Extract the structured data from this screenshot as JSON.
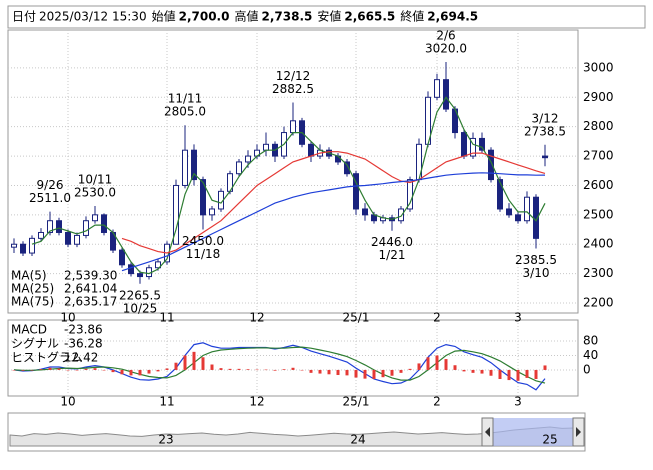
{
  "header": {
    "fields": [
      {
        "label": "日付",
        "value": "2025/03/12 15:30",
        "color": "#000000"
      },
      {
        "label": "始値",
        "value": "2,700.0",
        "color": "#000000"
      },
      {
        "label": "高値",
        "value": "2,738.5",
        "color": "#e00000"
      },
      {
        "label": "安値",
        "value": "2,665.5",
        "color": "#008000"
      },
      {
        "label": "終値",
        "value": "2,694.5",
        "color": "#000000"
      }
    ]
  },
  "chart_data": [
    {
      "type": "candlestick",
      "categories": [
        null,
        null,
        null,
        null,
        null,
        null,
        "10",
        null,
        null,
        null,
        null,
        null,
        null,
        null,
        null,
        null,
        null,
        "11",
        null,
        null,
        null,
        null,
        null,
        null,
        null,
        null,
        null,
        "12",
        null,
        null,
        null,
        null,
        null,
        null,
        null,
        null,
        null,
        null,
        "25/1",
        null,
        null,
        null,
        null,
        null,
        null,
        null,
        null,
        "2",
        null,
        null,
        null,
        null,
        null,
        null,
        null,
        null,
        "3",
        null,
        null,
        null
      ],
      "open": [
        2390,
        2400,
        2370,
        2420,
        2440,
        2480,
        2440,
        2400,
        2430,
        2480,
        2500,
        2440,
        2380,
        2330,
        2300,
        2290,
        2320,
        2340,
        2400,
        2600,
        2720,
        2620,
        2500,
        2520,
        2580,
        2640,
        2680,
        2700,
        2720,
        2740,
        2700,
        2780,
        2820,
        2740,
        2700,
        2720,
        2700,
        2680,
        2640,
        2520,
        2500,
        2480,
        2490,
        2480,
        2520,
        2620,
        2740,
        2900,
        2960,
        2860,
        2780,
        2700,
        2760,
        2720,
        2620,
        2520,
        2500,
        2480,
        2560,
        2700
      ],
      "high": [
        2420,
        2410,
        2430,
        2455,
        2511,
        2490,
        2450,
        2440,
        2495,
        2530,
        2505,
        2450,
        2390,
        2340,
        2310,
        2330,
        2350,
        2410,
        2620,
        2805,
        2740,
        2630,
        2530,
        2590,
        2650,
        2690,
        2720,
        2740,
        2780,
        2750,
        2800,
        2882.5,
        2830,
        2750,
        2740,
        2730,
        2710,
        2690,
        2650,
        2540,
        2510,
        2500,
        2500,
        2530,
        2630,
        2760,
        2920,
        2980,
        3020,
        2870,
        2790,
        2780,
        2780,
        2730,
        2630,
        2540,
        2510,
        2580,
        2570,
        2738.5
      ],
      "low": [
        2370,
        2360,
        2360,
        2410,
        2430,
        2430,
        2390,
        2390,
        2420,
        2470,
        2430,
        2370,
        2320,
        2290,
        2265.5,
        2280,
        2310,
        2330,
        2400,
        2590,
        2600,
        2450,
        2480,
        2510,
        2570,
        2630,
        2660,
        2690,
        2700,
        2680,
        2690,
        2770,
        2730,
        2680,
        2690,
        2690,
        2670,
        2630,
        2500,
        2480,
        2470,
        2470,
        2446,
        2470,
        2510,
        2610,
        2730,
        2890,
        2850,
        2760,
        2690,
        2690,
        2710,
        2610,
        2510,
        2490,
        2470,
        2470,
        2385.5,
        2665.5
      ],
      "close": [
        2400,
        2370,
        2420,
        2440,
        2480,
        2440,
        2400,
        2430,
        2480,
        2500,
        2440,
        2380,
        2330,
        2300,
        2290,
        2320,
        2340,
        2400,
        2600,
        2720,
        2620,
        2500,
        2520,
        2580,
        2640,
        2680,
        2700,
        2720,
        2740,
        2700,
        2780,
        2820,
        2740,
        2700,
        2720,
        2700,
        2680,
        2640,
        2520,
        2500,
        2480,
        2490,
        2480,
        2520,
        2620,
        2740,
        2900,
        2960,
        2860,
        2780,
        2700,
        2760,
        2720,
        2620,
        2520,
        2500,
        2480,
        2560,
        2420,
        2694.5
      ],
      "high_labels": [
        null,
        null,
        null,
        null,
        "2511.0",
        null,
        null,
        null,
        null,
        "2530.0",
        null,
        null,
        null,
        null,
        null,
        null,
        null,
        null,
        null,
        "2805.0",
        null,
        null,
        null,
        null,
        null,
        null,
        null,
        null,
        null,
        null,
        null,
        "2882.5",
        null,
        null,
        null,
        null,
        null,
        null,
        null,
        null,
        null,
        null,
        null,
        null,
        null,
        null,
        null,
        null,
        "3020.0",
        null,
        null,
        null,
        null,
        null,
        null,
        null,
        null,
        null,
        null,
        "2738.5"
      ],
      "high_dates": [
        null,
        null,
        null,
        null,
        "9/26",
        null,
        null,
        null,
        null,
        "10/11",
        null,
        null,
        null,
        null,
        null,
        null,
        null,
        null,
        null,
        "11/11",
        null,
        null,
        null,
        null,
        null,
        null,
        null,
        null,
        null,
        null,
        null,
        "12/12",
        null,
        null,
        null,
        null,
        null,
        null,
        null,
        null,
        null,
        null,
        null,
        null,
        null,
        null,
        null,
        null,
        "2/6",
        null,
        null,
        null,
        null,
        null,
        null,
        null,
        null,
        null,
        null,
        "3/12"
      ],
      "low_labels": [
        null,
        null,
        null,
        null,
        null,
        null,
        null,
        null,
        null,
        null,
        null,
        null,
        null,
        null,
        "2265.5",
        null,
        null,
        null,
        null,
        null,
        null,
        "2450.0",
        null,
        null,
        null,
        null,
        null,
        null,
        null,
        null,
        null,
        null,
        null,
        null,
        null,
        null,
        null,
        null,
        null,
        null,
        null,
        null,
        "2446.0",
        null,
        null,
        null,
        null,
        null,
        null,
        null,
        null,
        null,
        null,
        null,
        null,
        null,
        null,
        null,
        "2385.5",
        null
      ],
      "low_dates": [
        null,
        null,
        null,
        null,
        null,
        null,
        null,
        null,
        null,
        null,
        null,
        null,
        null,
        null,
        "10/25",
        null,
        null,
        null,
        null,
        null,
        null,
        "11/18",
        null,
        null,
        null,
        null,
        null,
        null,
        null,
        null,
        null,
        null,
        null,
        null,
        null,
        null,
        null,
        null,
        null,
        null,
        null,
        null,
        "1/21",
        null,
        null,
        null,
        null,
        null,
        null,
        null,
        null,
        null,
        null,
        null,
        null,
        null,
        null,
        null,
        "3/10",
        null
      ],
      "up_color": "#ffffff",
      "down_color": "#1a237e",
      "series": [
        {
          "name": "MA(5)",
          "color": "#2e7d32",
          "last_label": "2,539.30",
          "values": [
            null,
            null,
            2400,
            2410,
            2445,
            2455,
            2445,
            2435,
            2445,
            2465,
            2465,
            2440,
            2390,
            2340,
            2305,
            2300,
            2315,
            2350,
            2450,
            2570,
            2640,
            2610,
            2550,
            2540,
            2580,
            2630,
            2670,
            2700,
            2720,
            2720,
            2740,
            2780,
            2780,
            2750,
            2720,
            2710,
            2700,
            2670,
            2610,
            2550,
            2500,
            2490,
            2485,
            2495,
            2540,
            2620,
            2740,
            2850,
            2900,
            2860,
            2790,
            2740,
            2730,
            2680,
            2610,
            2550,
            2510,
            2510,
            2480,
            2539.3
          ]
        },
        {
          "name": "MA(25)",
          "color": "#e53935",
          "last_label": "2,641.04",
          "values": [
            null,
            null,
            null,
            null,
            null,
            null,
            null,
            null,
            null,
            null,
            null,
            null,
            2420,
            2410,
            2395,
            2385,
            2375,
            2370,
            2380,
            2400,
            2420,
            2440,
            2460,
            2480,
            2510,
            2540,
            2570,
            2600,
            2620,
            2640,
            2660,
            2680,
            2690,
            2700,
            2710,
            2715,
            2715,
            2710,
            2700,
            2690,
            2670,
            2650,
            2630,
            2615,
            2610,
            2620,
            2640,
            2660,
            2680,
            2690,
            2700,
            2710,
            2710,
            2700,
            2690,
            2680,
            2670,
            2660,
            2650,
            2641.04
          ]
        },
        {
          "name": "MA(75)",
          "color": "#1e3fd8",
          "last_label": "2,635.17",
          "values": [
            null,
            null,
            null,
            null,
            null,
            null,
            null,
            null,
            null,
            null,
            null,
            null,
            2310,
            2320,
            2330,
            2340,
            2350,
            2360,
            2375,
            2390,
            2405,
            2420,
            2435,
            2450,
            2465,
            2480,
            2495,
            2510,
            2525,
            2540,
            2550,
            2560,
            2568,
            2575,
            2580,
            2585,
            2590,
            2595,
            2598,
            2600,
            2603,
            2606,
            2610,
            2613,
            2616,
            2620,
            2625,
            2630,
            2635,
            2638,
            2640,
            2642,
            2643,
            2642,
            2640,
            2638,
            2636,
            2636,
            2635,
            2635.17
          ]
        }
      ],
      "ylim": [
        2166,
        3129
      ],
      "yticks": [
        2200,
        2300,
        2400,
        2500,
        2600,
        2700,
        2800,
        2900,
        3000
      ],
      "grid": true
    },
    {
      "type": "macd",
      "series": [
        {
          "name": "MACD",
          "color": "#1e3fd8",
          "style": "line",
          "values": [
            0,
            -3,
            -2,
            2,
            8,
            8,
            4,
            3,
            8,
            12,
            8,
            0,
            -10,
            -20,
            -27,
            -28,
            -25,
            -18,
            5,
            40,
            70,
            75,
            65,
            60,
            60,
            62,
            62,
            62,
            62,
            58,
            62,
            68,
            62,
            52,
            45,
            38,
            30,
            22,
            5,
            -10,
            -25,
            -32,
            -38,
            -36,
            -25,
            0,
            35,
            60,
            70,
            65,
            50,
            42,
            35,
            20,
            0,
            -18,
            -35,
            -40,
            -55,
            -23.86
          ]
        },
        {
          "name": "シグナル",
          "color": "#2e7d32",
          "style": "line",
          "values": [
            0,
            -1,
            -1,
            0,
            2,
            4,
            5,
            4,
            5,
            7,
            8,
            6,
            2,
            -5,
            -12,
            -18,
            -21,
            -22,
            -15,
            0,
            20,
            40,
            50,
            55,
            57,
            59,
            60,
            61,
            61,
            60,
            60,
            62,
            63,
            60,
            55,
            50,
            44,
            37,
            26,
            14,
            0,
            -12,
            -22,
            -28,
            -28,
            -18,
            0,
            20,
            40,
            52,
            54,
            50,
            45,
            36,
            25,
            10,
            -5,
            -18,
            -30,
            -36.28
          ]
        },
        {
          "name": "ヒストグラム",
          "color": "#e53935",
          "style": "bar",
          "values": [
            0,
            -2,
            -1,
            2,
            6,
            4,
            -1,
            -1,
            3,
            5,
            0,
            -6,
            -12,
            -15,
            -15,
            -10,
            -4,
            4,
            20,
            40,
            50,
            35,
            15,
            5,
            3,
            3,
            2,
            1,
            1,
            -2,
            2,
            6,
            -1,
            -8,
            -10,
            -12,
            -14,
            -15,
            -21,
            -24,
            -25,
            -20,
            -16,
            -8,
            3,
            18,
            35,
            40,
            30,
            13,
            -4,
            -8,
            -10,
            -16,
            -25,
            -28,
            -30,
            -22,
            -25,
            12.42
          ]
        }
      ],
      "ylim": [
        -72,
        138
      ],
      "yticks": [
        0,
        40,
        80
      ],
      "grid": true
    },
    {
      "type": "area",
      "categories": [
        null,
        null,
        null,
        null,
        null,
        null,
        null,
        null,
        null,
        null,
        null,
        null,
        null,
        "23",
        null,
        null,
        null,
        null,
        null,
        null,
        null,
        null,
        null,
        null,
        null,
        null,
        null,
        null,
        null,
        "24",
        null,
        null,
        null,
        null,
        null,
        null,
        null,
        null,
        null,
        null,
        null,
        null,
        null,
        null,
        null,
        "25",
        null,
        null
      ],
      "values": [
        2350,
        2300,
        2420,
        2380,
        2450,
        2400,
        2330,
        2380,
        2420,
        2360,
        2300,
        2280,
        2350,
        2400,
        2380,
        2420,
        2450,
        2390,
        2350,
        2400,
        2480,
        2430,
        2380,
        2350,
        2300,
        2340,
        2390,
        2440,
        2400,
        2380,
        2420,
        2460,
        2500,
        2450,
        2400,
        2430,
        2470,
        2420,
        2380,
        2400,
        2450,
        2520,
        2600,
        2650,
        2700,
        2750,
        2680,
        2700
      ],
      "ylim": [
        1800,
        3200
      ],
      "color": "#8a8a8a"
    }
  ]
}
